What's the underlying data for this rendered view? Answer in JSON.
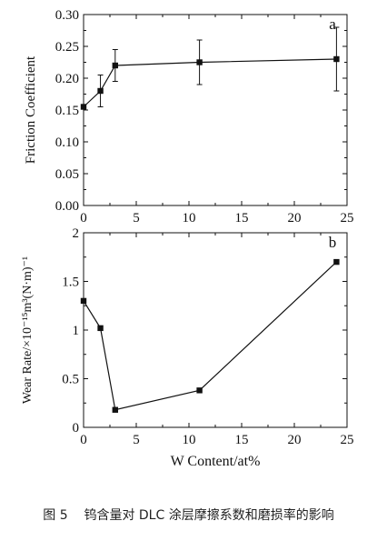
{
  "chart_data": [
    {
      "type": "line",
      "panel_label": "a",
      "ylabel": "Friction Coefficient",
      "xlabel": "",
      "xlim": [
        0,
        25
      ],
      "ylim": [
        0,
        0.3
      ],
      "x_ticks": [
        "0",
        "5",
        "10",
        "15",
        "20",
        "25"
      ],
      "y_ticks": [
        "0.00",
        "0.05",
        "0.10",
        "0.15",
        "0.20",
        "0.25",
        "0.30"
      ],
      "series": [
        {
          "x": [
            0,
            1.6,
            3.0,
            11.0,
            24.0
          ],
          "y": [
            0.155,
            0.18,
            0.22,
            0.225,
            0.23
          ],
          "err": [
            0.0,
            0.025,
            0.025,
            0.035,
            0.05
          ],
          "color": "#111111"
        }
      ]
    },
    {
      "type": "line",
      "panel_label": "b",
      "ylabel": "Wear Rate/×10⁻¹⁵m³(N·m)⁻¹",
      "xlabel": "W Content/at%",
      "xlim": [
        0,
        25
      ],
      "ylim": [
        0,
        2
      ],
      "x_ticks": [
        "0",
        "5",
        "10",
        "15",
        "20",
        "25"
      ],
      "y_ticks": [
        "0",
        "0.5",
        "1",
        "1.5",
        "2"
      ],
      "series": [
        {
          "x": [
            0,
            1.6,
            3.0,
            11.0,
            24.0
          ],
          "y": [
            1.3,
            1.02,
            0.18,
            0.38,
            1.7
          ],
          "color": "#111111"
        }
      ]
    }
  ],
  "caption": {
    "label": "图 5",
    "text": "钨含量对 DLC 涂层摩擦系数和磨损率的影响"
  }
}
